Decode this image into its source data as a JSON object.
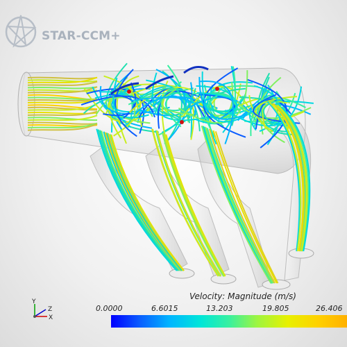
{
  "brand": {
    "name": "STAR-CCM+",
    "logo_icon": "star-ccm-logo-icon"
  },
  "legend": {
    "title": "Velocity: Magnitude (m/s)",
    "ticks": [
      "0.0000",
      "6.6015",
      "13.203",
      "19.805",
      "26.406"
    ],
    "colors": [
      "#0000ff",
      "#00b6ff",
      "#38f0a0",
      "#e8f000",
      "#ffb000"
    ]
  },
  "axes": {
    "x": "X",
    "y": "Y",
    "z": "Z"
  },
  "scene": {
    "type": "streamline-visualization",
    "hot_spot_color": "#d01010"
  }
}
